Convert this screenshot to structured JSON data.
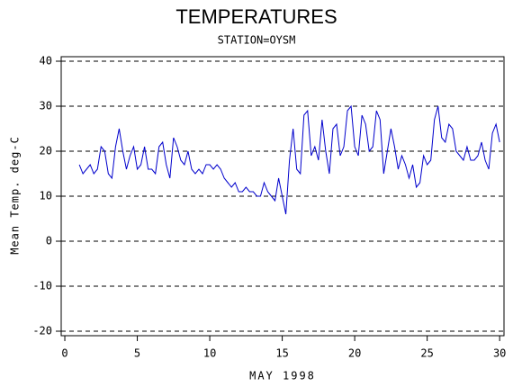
{
  "chart_data": {
    "type": "line",
    "title": "TEMPERATURES",
    "subtitle": "STATION=OYSM",
    "x_label": "MAY 1998",
    "y_label": "Mean Temp. deg-C",
    "xlim": [
      -0.25,
      30.3
    ],
    "xticks": [
      0,
      5,
      10,
      15,
      20,
      25,
      30
    ],
    "ylim": [
      -21,
      41
    ],
    "yticks": [
      -20,
      -10,
      0,
      10,
      20,
      30,
      40
    ],
    "grid": true,
    "series": [
      {
        "name": "Mean Temp",
        "color": "#0000cc",
        "x": [
          1,
          1.25,
          1.5,
          1.75,
          2,
          2.25,
          2.5,
          2.75,
          3,
          3.25,
          3.5,
          3.75,
          4,
          4.25,
          4.5,
          4.75,
          5,
          5.25,
          5.5,
          5.75,
          6,
          6.25,
          6.5,
          6.75,
          7,
          7.25,
          7.5,
          7.75,
          8,
          8.25,
          8.5,
          8.75,
          9,
          9.25,
          9.5,
          9.75,
          10,
          10.25,
          10.5,
          10.75,
          11,
          11.25,
          11.5,
          11.75,
          12,
          12.25,
          12.5,
          12.75,
          13,
          13.25,
          13.5,
          13.75,
          14,
          14.25,
          14.5,
          14.75,
          15,
          15.25,
          15.5,
          15.75,
          16,
          16.25,
          16.5,
          16.75,
          17,
          17.25,
          17.5,
          17.75,
          18,
          18.25,
          18.5,
          18.75,
          19,
          19.25,
          19.5,
          19.75,
          20,
          20.25,
          20.5,
          20.75,
          21,
          21.25,
          21.5,
          21.75,
          22,
          22.25,
          22.5,
          22.75,
          23,
          23.25,
          23.5,
          23.75,
          24,
          24.25,
          24.5,
          24.75,
          25,
          25.25,
          25.5,
          25.75,
          26,
          26.25,
          26.5,
          26.75,
          27,
          27.25,
          27.5,
          27.75,
          28,
          28.25,
          28.5,
          28.75,
          29,
          29.25,
          29.5,
          29.75,
          30
        ],
        "values": [
          17,
          15,
          16,
          17,
          15,
          16,
          21,
          20,
          15,
          14,
          21,
          25,
          20,
          16,
          19,
          21,
          16,
          17,
          21,
          16,
          16,
          15,
          21,
          22,
          17,
          14,
          23,
          21,
          18,
          17,
          20,
          16,
          15,
          16,
          15,
          17,
          17,
          16,
          17,
          16,
          14,
          13,
          12,
          13,
          11,
          11,
          12,
          11,
          11,
          10,
          10,
          13,
          11,
          10,
          9,
          14,
          10,
          6,
          18,
          25,
          16,
          15,
          28,
          29,
          19,
          21,
          18,
          27,
          20,
          15,
          25,
          26,
          19,
          21,
          29,
          30,
          21,
          19,
          28,
          26,
          20,
          21,
          29,
          27,
          15,
          20,
          25,
          21,
          16,
          19,
          17,
          14,
          17,
          12,
          13,
          19,
          17,
          18,
          27,
          30,
          23,
          22,
          26,
          25,
          20,
          19,
          18,
          21,
          18,
          18,
          19,
          22,
          18,
          16,
          24,
          26,
          22
        ]
      }
    ]
  }
}
